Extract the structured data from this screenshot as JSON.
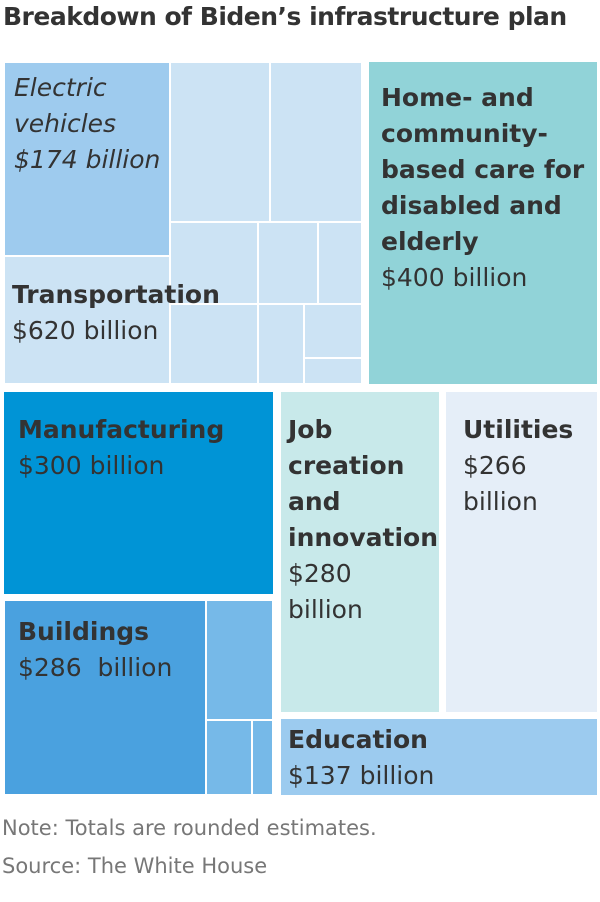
{
  "chart_data": {
    "type": "treemap",
    "title": "Breakdown of Biden’s infrastructure plan",
    "unit": "billion USD",
    "categories": [
      {
        "name": "Transportation",
        "value_label": "$620 billion",
        "value": 620,
        "color": "#cce3f4",
        "children": [
          {
            "name": "Electric vehicles",
            "value_label": "$174 billion",
            "value": 174,
            "color": "#9ecbee"
          }
        ]
      },
      {
        "name": "Home- and community-based care for disabled and elderly",
        "value_label": "$400 billion",
        "value": 400,
        "color": "#91d3d8"
      },
      {
        "name": "Manufacturing",
        "value_label": "$300 billion",
        "value": 300,
        "color": "#0094d6"
      },
      {
        "name": "Job creation and innovation",
        "value_label": "$280 billion",
        "value": 280,
        "color": "#c8e9ea"
      },
      {
        "name": "Utilities",
        "value_label": "$266 billion",
        "value": 266,
        "color": "#e5eef8"
      },
      {
        "name": "Buildings",
        "value_label": "$286  billion",
        "value": 286,
        "color": "#4aa1df"
      },
      {
        "name": "Education",
        "value_label": "$137 billion",
        "value": 137,
        "color": "#9ccbef"
      }
    ]
  },
  "labels": {
    "ev_name": "Electric vehicles",
    "ev_value": "$174 billion",
    "transportation_name": "Transportation",
    "transportation_value": "$620 billion",
    "care_name": "Home- and community-based care for disabled and elderly",
    "care_value": "$400 billion",
    "manufacturing_name": "Manufacturing",
    "manufacturing_value": "$300 billion",
    "job_name": "Job creation and innovation",
    "job_value": "$280 billion",
    "utilities_name": "Utilities",
    "utilities_value": "$266 billion",
    "buildings_name": "Buildings",
    "buildings_value": "$286  billion",
    "education_name": "Education",
    "education_value": "$137 billion"
  },
  "footer": {
    "note": "Note: Totals are rounded estimates.",
    "source": "Source: The White House"
  }
}
